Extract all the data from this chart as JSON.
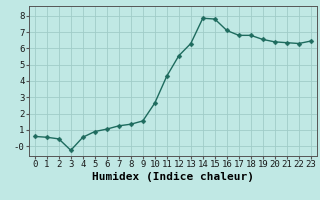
{
  "x": [
    0,
    1,
    2,
    3,
    4,
    5,
    6,
    7,
    8,
    9,
    10,
    11,
    12,
    13,
    14,
    15,
    16,
    17,
    18,
    19,
    20,
    21,
    22,
    23
  ],
  "y": [
    0.6,
    0.55,
    0.45,
    -0.25,
    0.55,
    0.9,
    1.05,
    1.25,
    1.35,
    1.55,
    2.65,
    4.3,
    5.55,
    6.3,
    7.85,
    7.8,
    7.1,
    6.8,
    6.8,
    6.55,
    6.4,
    6.35,
    6.3,
    6.45
  ],
  "line_color": "#1e6b5e",
  "marker": "D",
  "marker_size": 2.5,
  "bg_color": "#c0e8e4",
  "grid_color": "#a0ccc8",
  "xlabel": "Humidex (Indice chaleur)",
  "xlim": [
    -0.5,
    23.5
  ],
  "ylim": [
    -0.6,
    8.6
  ],
  "yticks": [
    0,
    1,
    2,
    3,
    4,
    5,
    6,
    7,
    8
  ],
  "ytick_labels": [
    "-0",
    "1",
    "2",
    "3",
    "4",
    "5",
    "6",
    "7",
    "8"
  ],
  "xticks": [
    0,
    1,
    2,
    3,
    4,
    5,
    6,
    7,
    8,
    9,
    10,
    11,
    12,
    13,
    14,
    15,
    16,
    17,
    18,
    19,
    20,
    21,
    22,
    23
  ],
  "tick_fontsize": 6.5,
  "xlabel_fontsize": 8,
  "linewidth": 1.0
}
